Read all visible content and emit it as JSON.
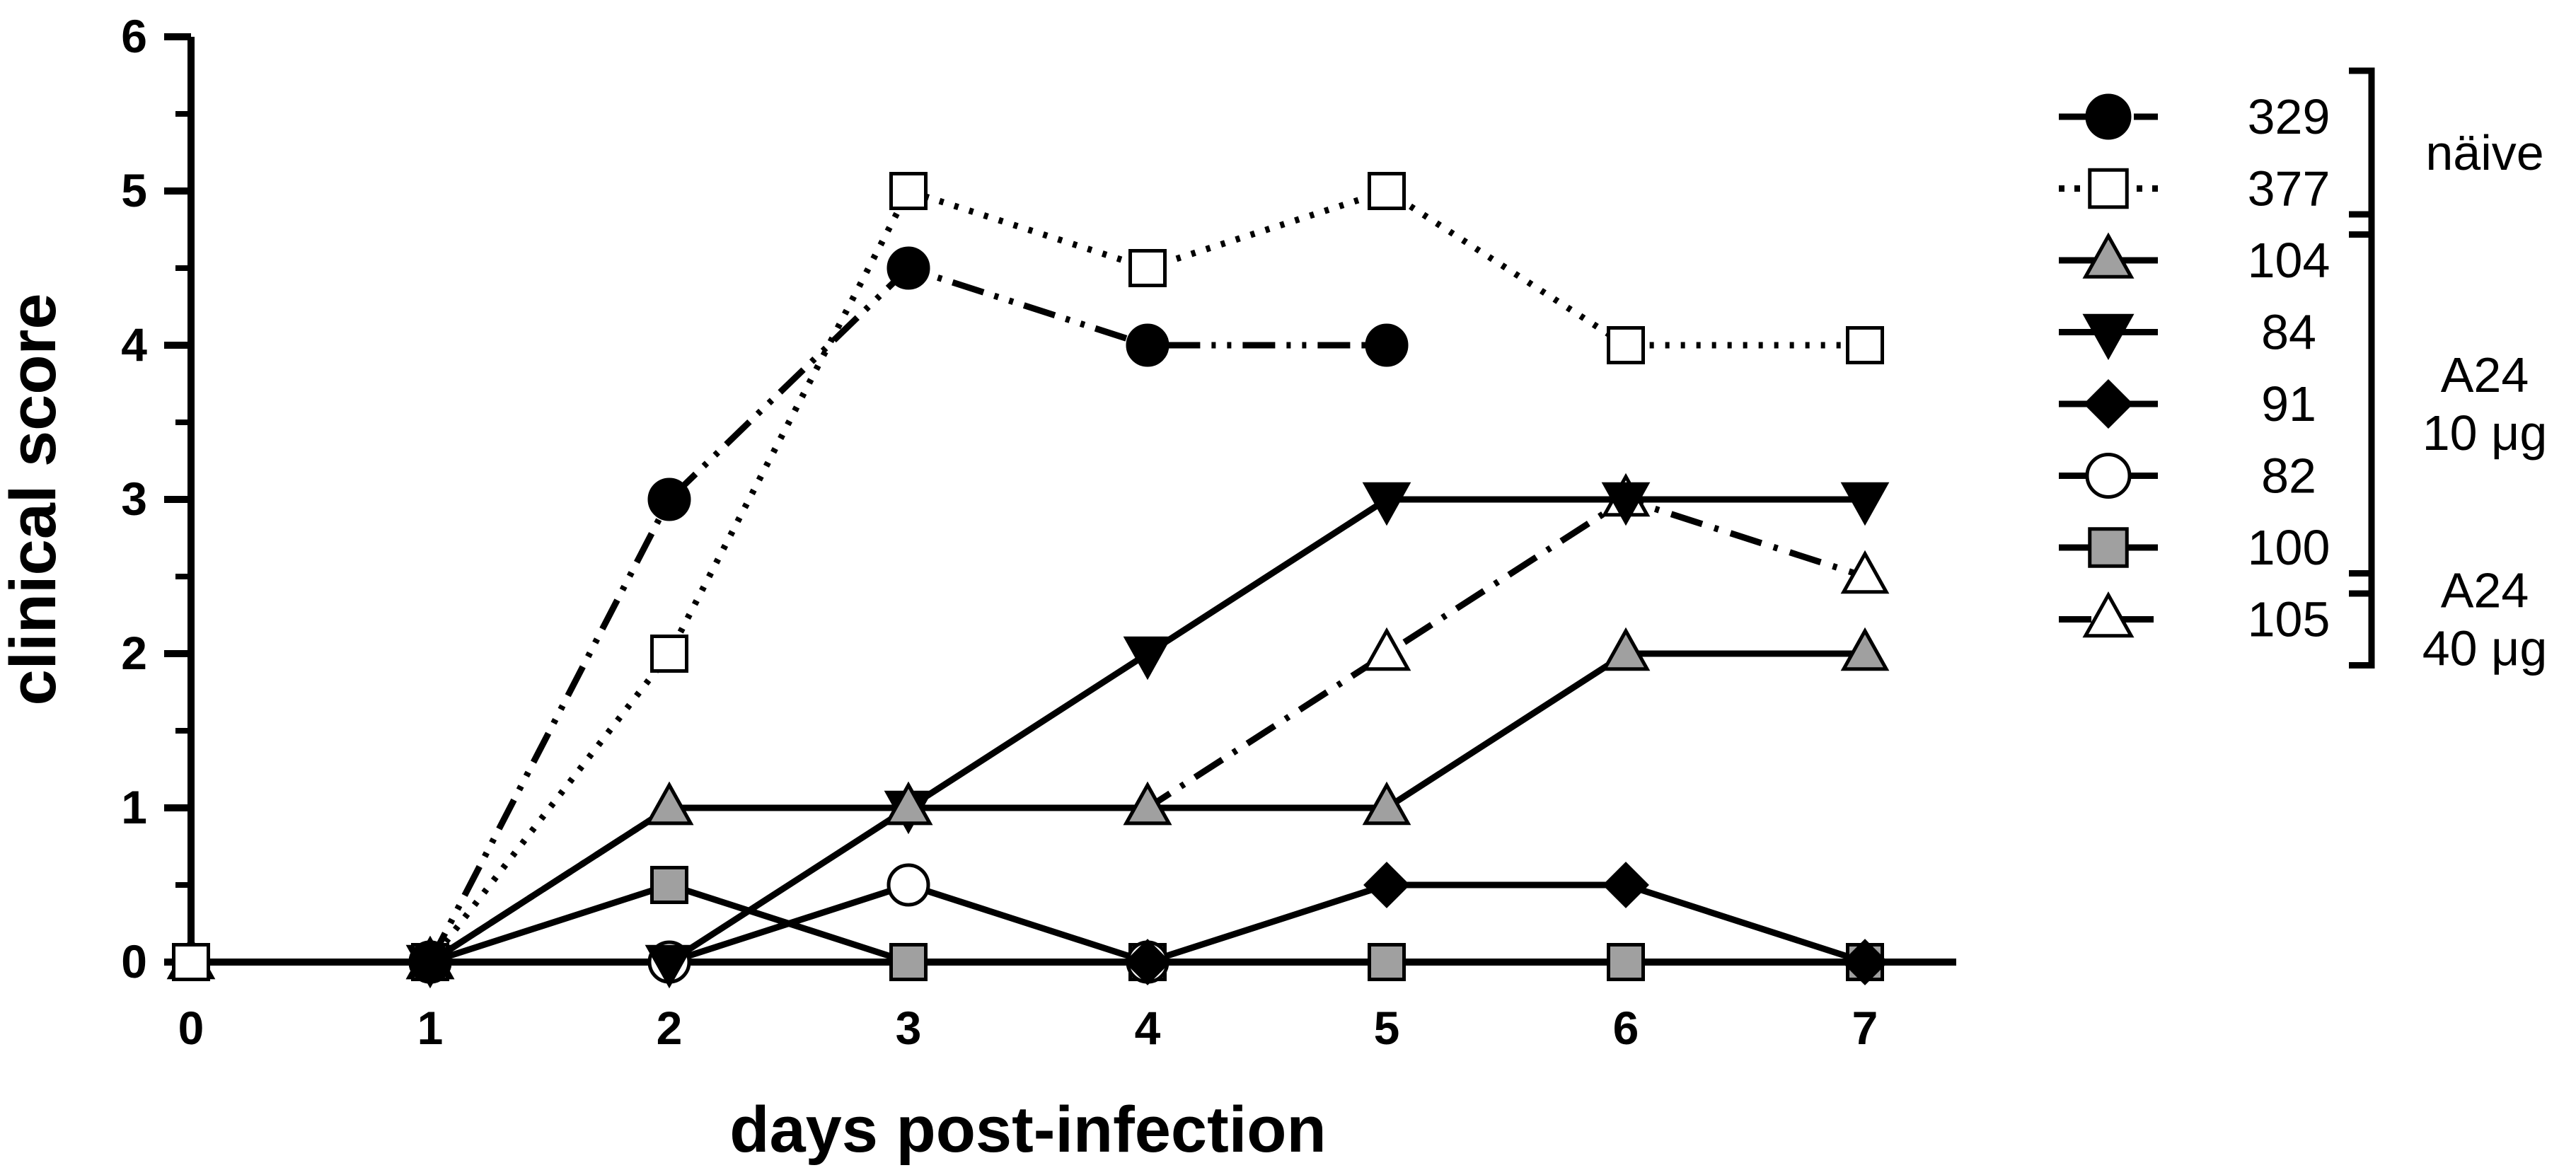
{
  "chart_data": {
    "type": "line",
    "title": "",
    "xlabel": "days post-infection",
    "ylabel": "clinical score",
    "xlim": [
      0,
      7
    ],
    "ylim": [
      0,
      6
    ],
    "x_ticks": [
      "0",
      "1",
      "2",
      "3",
      "4",
      "5",
      "6",
      "7"
    ],
    "y_ticks": [
      "0",
      "1",
      "2",
      "3",
      "4",
      "5",
      "6"
    ],
    "grid": false,
    "legend_placement": "right",
    "series": [
      {
        "name": "329",
        "marker": "circle",
        "fill": "#000000",
        "line": "dash-dot-dot",
        "x": [
          1,
          2,
          3,
          4,
          5
        ],
        "y": [
          0,
          3,
          4.5,
          4,
          4
        ]
      },
      {
        "name": "377",
        "marker": "square",
        "fill": "#ffffff",
        "line": "dotted",
        "x": [
          0,
          1,
          2,
          3,
          4,
          5,
          6,
          7
        ],
        "y": [
          0,
          0,
          2,
          5,
          4.5,
          5,
          4,
          4
        ]
      },
      {
        "name": "104",
        "marker": "triangle-up",
        "fill": "#a0a0a0",
        "line": "solid",
        "x": [
          1,
          2,
          3,
          4,
          5,
          6,
          7
        ],
        "y": [
          0,
          1,
          1,
          1,
          1,
          2,
          2
        ]
      },
      {
        "name": "84",
        "marker": "triangle-down",
        "fill": "#000000",
        "line": "solid",
        "x": [
          1,
          2,
          3,
          4,
          5,
          6,
          7
        ],
        "y": [
          0,
          0,
          1,
          2,
          3,
          3,
          3
        ]
      },
      {
        "name": "91",
        "marker": "diamond",
        "fill": "#000000",
        "line": "solid",
        "x": [
          4,
          5,
          6,
          7
        ],
        "y": [
          0,
          0.5,
          0.5,
          0
        ]
      },
      {
        "name": "82",
        "marker": "circle",
        "fill": "#ffffff",
        "line": "solid",
        "x": [
          1,
          2,
          3,
          4
        ],
        "y": [
          0,
          0,
          0.5,
          0
        ]
      },
      {
        "name": "100",
        "marker": "square",
        "fill": "#a0a0a0",
        "line": "solid",
        "x": [
          0,
          1,
          2,
          3,
          4,
          5,
          6,
          7
        ],
        "y": [
          0,
          0,
          0.5,
          0,
          0,
          0,
          0,
          0
        ]
      },
      {
        "name": "105",
        "marker": "triangle-up",
        "fill": "#ffffff",
        "line": "dash-dot",
        "x": [
          0,
          1,
          2,
          3,
          4,
          5,
          6,
          7
        ],
        "y": [
          0,
          0,
          1,
          1,
          1,
          2,
          3,
          2.5
        ]
      }
    ],
    "groups": [
      {
        "label": "näive",
        "members": [
          "329",
          "377"
        ]
      },
      {
        "label": "A24 10 μg",
        "lines": [
          "A24",
          "10 μg"
        ],
        "members": [
          "104",
          "84",
          "91",
          "82",
          "100"
        ]
      },
      {
        "label": "A24 40 μg",
        "lines": [
          "A24",
          "40 μg"
        ],
        "members": [
          "105"
        ]
      }
    ]
  }
}
